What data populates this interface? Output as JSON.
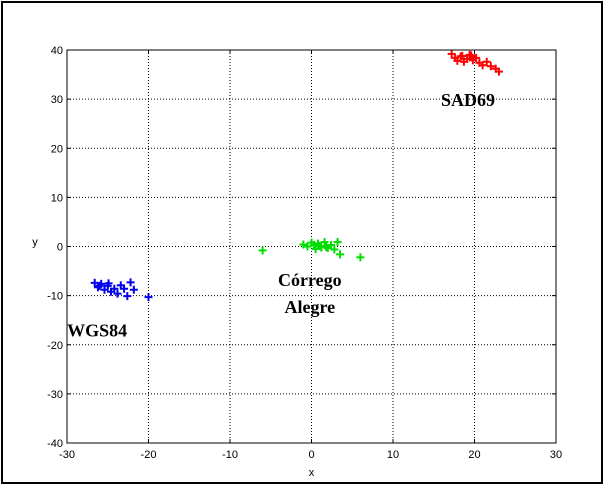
{
  "chart_data": {
    "type": "scatter",
    "title": "",
    "xlabel": "x",
    "ylabel": "y",
    "xlim": [
      -30,
      30
    ],
    "ylim": [
      -40,
      40
    ],
    "xticks": [
      -30,
      -20,
      -10,
      0,
      10,
      20,
      30
    ],
    "yticks": [
      -40,
      -30,
      -20,
      -10,
      0,
      10,
      20,
      30,
      40
    ],
    "grid": true,
    "grid_style": "dotted",
    "marker": "+",
    "series": [
      {
        "color": "#ff0000",
        "points": [
          [
            17.2,
            39.2
          ],
          [
            17.6,
            38.4
          ],
          [
            17.9,
            37.8
          ],
          [
            18.3,
            38.7
          ],
          [
            18.7,
            37.6
          ],
          [
            19.1,
            38.2
          ],
          [
            19.4,
            39.0
          ],
          [
            19.8,
            37.9
          ],
          [
            20.2,
            38.4
          ],
          [
            20.6,
            37.4
          ],
          [
            21.0,
            36.9
          ],
          [
            21.5,
            37.6
          ],
          [
            22.0,
            36.7
          ],
          [
            22.6,
            36.2
          ],
          [
            23.0,
            35.6
          ],
          [
            19.6,
            38.9
          ],
          [
            18.5,
            38.8
          ]
        ]
      },
      {
        "color": "#00dd00",
        "points": [
          [
            -6.0,
            -0.8
          ],
          [
            -1.0,
            0.4
          ],
          [
            -0.5,
            0.0
          ],
          [
            0.0,
            0.8
          ],
          [
            0.5,
            -0.5
          ],
          [
            0.8,
            0.6
          ],
          [
            1.2,
            -0.2
          ],
          [
            1.6,
            0.9
          ],
          [
            2.0,
            -0.3
          ],
          [
            2.4,
            0.3
          ],
          [
            2.8,
            -0.6
          ],
          [
            3.2,
            0.9
          ],
          [
            3.5,
            -1.6
          ],
          [
            1.0,
            0.1
          ],
          [
            0.3,
            0.3
          ],
          [
            6.0,
            -2.2
          ],
          [
            1.8,
            -0.1
          ]
        ]
      },
      {
        "color": "#0000ee",
        "points": [
          [
            -26.6,
            -7.4
          ],
          [
            -26.2,
            -8.3
          ],
          [
            -25.8,
            -7.6
          ],
          [
            -25.4,
            -8.8
          ],
          [
            -25.0,
            -8.0
          ],
          [
            -24.6,
            -9.2
          ],
          [
            -24.2,
            -8.6
          ],
          [
            -23.8,
            -9.6
          ],
          [
            -23.4,
            -7.9
          ],
          [
            -23.0,
            -8.6
          ],
          [
            -22.6,
            -10.1
          ],
          [
            -22.2,
            -7.3
          ],
          [
            -21.8,
            -8.8
          ],
          [
            -20.0,
            -10.3
          ],
          [
            -26.0,
            -8.0
          ],
          [
            -24.9,
            -7.5
          ]
        ]
      }
    ],
    "annotations": [
      {
        "text": "SAD69",
        "x": 19.2,
        "y": 28.6
      },
      {
        "text": "Córrego",
        "x": -0.2,
        "y": -8.0
      },
      {
        "text": "Alegre",
        "x": -0.2,
        "y": -13.5
      },
      {
        "text": "WGS84",
        "x": -26.3,
        "y": -18.3
      }
    ]
  }
}
